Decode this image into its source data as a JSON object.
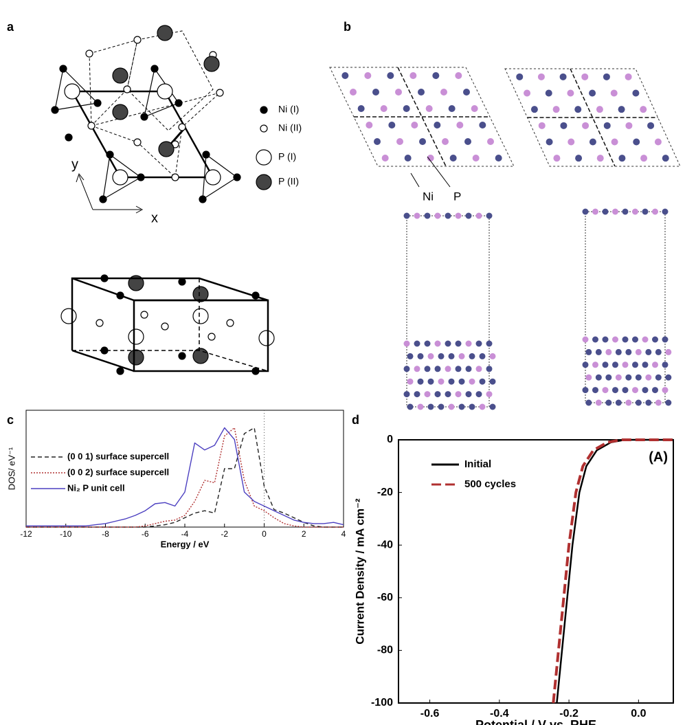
{
  "panel_labels": [
    "a",
    "b",
    "c",
    "d"
  ],
  "panel_a": {
    "legend": [
      "Ni (I)",
      "Ni (II)",
      "P (I)",
      "P (II)"
    ],
    "axis_y": "y",
    "axis_x": "x"
  },
  "panel_b": {
    "labels": [
      "Ni",
      "P"
    ]
  },
  "chart_data": [
    {
      "type": "line",
      "xlabel": "Energy / eV",
      "ylabel": "DOS/ eV⁻¹",
      "x": [
        -12,
        -11.5,
        -11,
        -10.5,
        -10,
        -9.5,
        -9,
        -8.5,
        -8,
        -7.5,
        -7,
        -6.5,
        -6,
        -5.5,
        -5,
        -4.5,
        -4,
        -3.5,
        -3,
        -2.5,
        -2,
        -1.5,
        -1,
        -0.5,
        0,
        0.5,
        1,
        1.5,
        2,
        2.5,
        3,
        3.5,
        4
      ],
      "xlim": [
        -12,
        4
      ],
      "xticks": [
        -12,
        -10,
        -8,
        -6,
        -4,
        -2,
        0,
        2,
        4
      ],
      "ylim": [
        0,
        100
      ],
      "vline": 0,
      "series": [
        {
          "name": "(0 0 1) surface supercell",
          "color": "#222222",
          "style": "dashed",
          "values": [
            0,
            0,
            0,
            0,
            0,
            0,
            0,
            0,
            0,
            0,
            0,
            0,
            0,
            1,
            2,
            4,
            8,
            12,
            14,
            12,
            50,
            50,
            80,
            85,
            35,
            15,
            12,
            8,
            4,
            1,
            0,
            0,
            0
          ]
        },
        {
          "name": "(0 0 2) surface supercell",
          "color": "#b03030",
          "style": "dotted",
          "values": [
            0,
            0,
            0,
            0,
            0,
            0,
            0,
            0,
            0,
            0,
            0,
            0,
            1,
            3,
            5,
            6,
            10,
            22,
            40,
            38,
            78,
            85,
            40,
            18,
            14,
            8,
            3,
            1,
            0,
            0,
            0,
            0,
            0
          ]
        },
        {
          "name": "Ni₂ P unit cell",
          "color": "#4b3fc0",
          "style": "solid",
          "values": [
            1,
            1,
            1,
            1,
            1,
            1,
            1,
            2,
            3,
            5,
            7,
            10,
            14,
            20,
            21,
            18,
            30,
            72,
            66,
            70,
            85,
            75,
            30,
            22,
            18,
            14,
            10,
            6,
            4,
            3,
            3,
            4,
            2
          ]
        }
      ]
    },
    {
      "type": "line",
      "xlabel": "Potential / V vs. RHE",
      "ylabel": "Current Density / mA cm⁻²",
      "annotation": "(A)",
      "xlim": [
        -0.69,
        0.1
      ],
      "xticks": [
        -0.6,
        -0.4,
        -0.2,
        {
          "value": 0,
          "label": "0.0"
        }
      ],
      "ylim": [
        -100,
        0
      ],
      "yticks": [
        0,
        -20,
        -40,
        -60,
        -80,
        -100
      ],
      "series": [
        {
          "name": "Initial",
          "color": "#000000",
          "style": "solid",
          "x": [
            -0.235,
            -0.22,
            -0.205,
            -0.19,
            -0.17,
            -0.15,
            -0.12,
            -0.08,
            -0.04,
            0.1
          ],
          "values": [
            -100,
            -80,
            -60,
            -40,
            -20,
            -10,
            -4,
            -1,
            0,
            0
          ]
        },
        {
          "name": "500 cycles",
          "color": "#b03030",
          "style": "longdash",
          "x": [
            -0.245,
            -0.23,
            -0.215,
            -0.2,
            -0.18,
            -0.16,
            -0.13,
            -0.09,
            -0.05,
            0.1
          ],
          "values": [
            -100,
            -80,
            -60,
            -40,
            -20,
            -10,
            -4,
            -1,
            0,
            0
          ]
        }
      ]
    }
  ]
}
